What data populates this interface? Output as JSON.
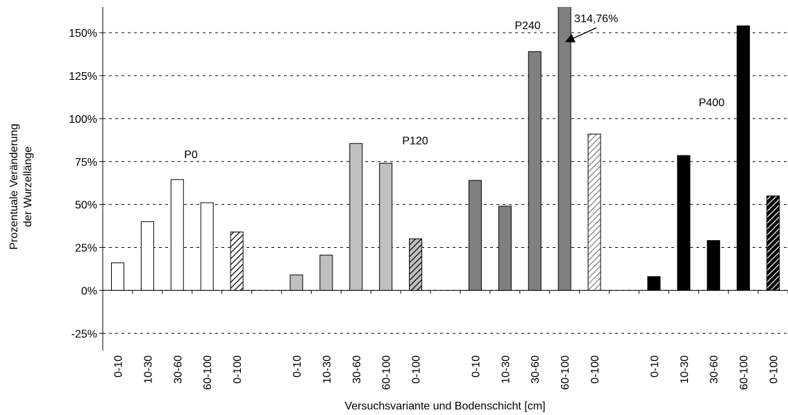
{
  "chart_data": {
    "type": "bar",
    "x_label": "Versuchsvariante und Bodenschicht [cm]",
    "y_label": [
      "Prozentuale Veränderung",
      "der Wurzellänge"
    ],
    "categories": [
      "0-10",
      "10-30",
      "30-60",
      "60-100",
      "0-100",
      null,
      "0-10",
      "10-30",
      "30-60",
      "60-100",
      "0-100",
      null,
      "0-10",
      "10-30",
      "30-60",
      "60-100",
      "0-100",
      null,
      "0-10",
      "10-30",
      "30-60",
      "60-100",
      "0-100"
    ],
    "hatched_categories": [
      4,
      10,
      16,
      22
    ],
    "series": [
      {
        "name": "P0",
        "color": "#ffffff",
        "hatch_fill": "#ffffff",
        "hatch_stroke": "#000000",
        "values": [
          16,
          40,
          64.5,
          51,
          34,
          null,
          null,
          null,
          null,
          null,
          null,
          null,
          null,
          null,
          null,
          null,
          null,
          null,
          null,
          null,
          null,
          null,
          null
        ]
      },
      {
        "name": "P120",
        "color": "#c0c0c0",
        "hatch_fill": "#c0c0c0",
        "hatch_stroke": "#000000",
        "values": [
          null,
          null,
          null,
          null,
          null,
          null,
          9,
          20.5,
          85.5,
          74,
          30,
          null,
          null,
          null,
          null,
          null,
          null,
          null,
          null,
          null,
          null,
          null,
          null
        ]
      },
      {
        "name": "P240",
        "color": "#808080",
        "hatch_fill": "#ffffff",
        "hatch_stroke": "#808080",
        "values": [
          null,
          null,
          null,
          null,
          null,
          null,
          null,
          null,
          null,
          null,
          null,
          null,
          64,
          49,
          139,
          314.76,
          91,
          null,
          null,
          null,
          null,
          null,
          null
        ],
        "value_labels": [
          null,
          null,
          null,
          null,
          null,
          null,
          null,
          null,
          null,
          null,
          null,
          null,
          null,
          null,
          null,
          "314,76%",
          null,
          null,
          null,
          null,
          null,
          null,
          null
        ]
      },
      {
        "name": "P400",
        "color": "#000000",
        "hatch_fill": "#000000",
        "hatch_stroke": "#ffffff",
        "values": [
          null,
          null,
          null,
          null,
          null,
          null,
          null,
          null,
          null,
          null,
          null,
          null,
          null,
          null,
          null,
          null,
          null,
          null,
          8,
          78.5,
          29,
          154,
          55
        ]
      }
    ],
    "ylim": [
      -35,
      165
    ],
    "yticks": [
      {
        "value": -25,
        "label": "-25%"
      },
      {
        "value": 0,
        "label": "0%"
      },
      {
        "value": 25,
        "label": "25%"
      },
      {
        "value": 50,
        "label": "50%"
      },
      {
        "value": 75,
        "label": "75%"
      },
      {
        "value": 100,
        "label": "100%"
      },
      {
        "value": 125,
        "label": "125%"
      },
      {
        "value": 150,
        "label": "150%"
      }
    ],
    "grid": true
  }
}
